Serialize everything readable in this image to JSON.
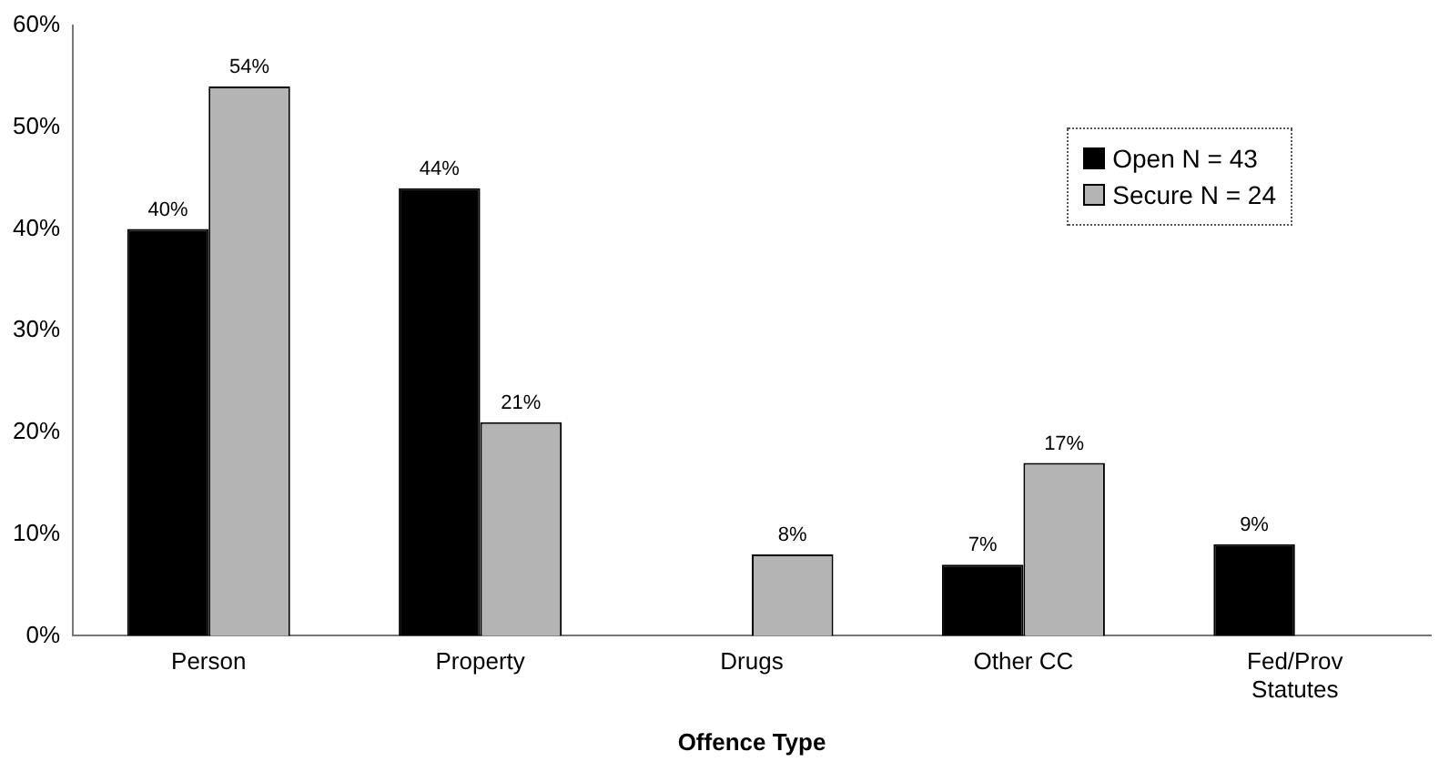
{
  "chart_data": {
    "type": "bar",
    "xlabel": "Offence Type",
    "categories": [
      "Person",
      "Property",
      "Drugs",
      "Other CC",
      "Fed/Prov Statutes"
    ],
    "series": [
      {
        "name": "Open N = 43",
        "color": "#000000",
        "values": [
          40,
          44,
          null,
          7,
          9
        ],
        "value_labels": [
          "40%",
          "44%",
          null,
          "7%",
          "9%"
        ]
      },
      {
        "name": "Secure N = 24",
        "color": "#b4b4b4",
        "values": [
          54,
          21,
          8,
          17,
          null
        ],
        "value_labels": [
          "54%",
          "21%",
          "8%",
          "17%",
          null
        ]
      }
    ],
    "ylim": [
      0,
      60
    ],
    "yticks": [
      {
        "value": 0,
        "label": "0%"
      },
      {
        "value": 10,
        "label": "10%"
      },
      {
        "value": 20,
        "label": "20%"
      },
      {
        "value": 30,
        "label": "30%"
      },
      {
        "value": 40,
        "label": "40%"
      },
      {
        "value": 50,
        "label": "50%"
      },
      {
        "value": 60,
        "label": "60%"
      }
    ],
    "grid": false,
    "legend": "top right"
  }
}
